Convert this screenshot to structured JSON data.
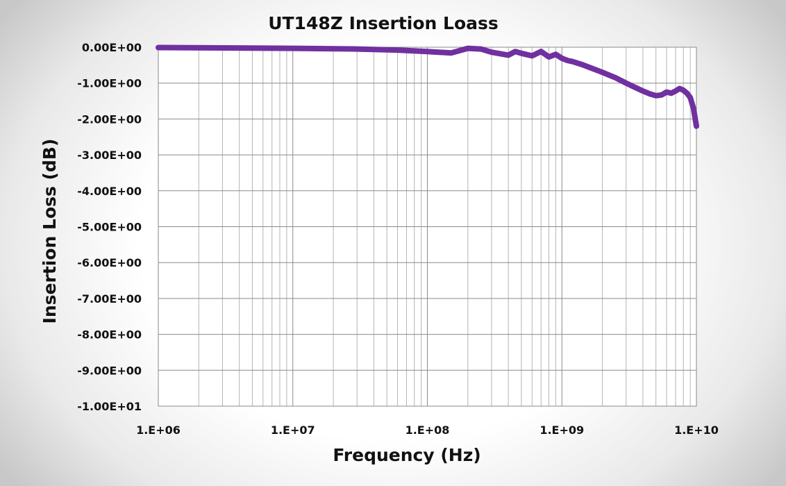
{
  "chart_data": {
    "type": "line",
    "title": "UT148Z Insertion Loass",
    "xlabel": "Frequency (Hz)",
    "ylabel": "Insertion Loss (dB)",
    "x_scale": "log",
    "xlim": [
      1000000,
      10000000000
    ],
    "ylim": [
      -10,
      0
    ],
    "x_tick_labels": [
      "1.E+06",
      "1.E+07",
      "1.E+08",
      "1.E+09",
      "1.E+10"
    ],
    "y_tick_labels": [
      "0.00E+00",
      "-1.00E+00",
      "-2.00E+00",
      "-3.00E+00",
      "-4.00E+00",
      "-5.00E+00",
      "-6.00E+00",
      "-7.00E+00",
      "-8.00E+00",
      "-9.00E+00",
      "-1.00E+01"
    ],
    "grid": true,
    "legend": "none",
    "series": [
      {
        "color": "#7030a0",
        "x": [
          1000000,
          3000000,
          10000000,
          30000000,
          60000000,
          100000000,
          150000000,
          200000000,
          250000000,
          300000000,
          400000000,
          450000000,
          500000000,
          600000000,
          700000000,
          800000000,
          900000000,
          1000000000,
          1100000000,
          1200000000,
          1400000000,
          1600000000,
          2000000000,
          2500000000,
          3000000000,
          3500000000,
          4000000000,
          4500000000,
          5000000000,
          5500000000,
          6000000000,
          6500000000,
          7000000000,
          7500000000,
          8000000000,
          8500000000,
          9000000000,
          9500000000,
          10000000000
        ],
        "y": [
          -0.01,
          -0.02,
          -0.03,
          -0.05,
          -0.08,
          -0.12,
          -0.16,
          -0.03,
          -0.05,
          -0.14,
          -0.22,
          -0.12,
          -0.17,
          -0.24,
          -0.12,
          -0.27,
          -0.2,
          -0.31,
          -0.37,
          -0.4,
          -0.48,
          -0.56,
          -0.7,
          -0.85,
          -1.0,
          -1.12,
          -1.22,
          -1.3,
          -1.35,
          -1.33,
          -1.25,
          -1.28,
          -1.22,
          -1.15,
          -1.2,
          -1.28,
          -1.4,
          -1.7,
          -2.2
        ]
      }
    ]
  }
}
